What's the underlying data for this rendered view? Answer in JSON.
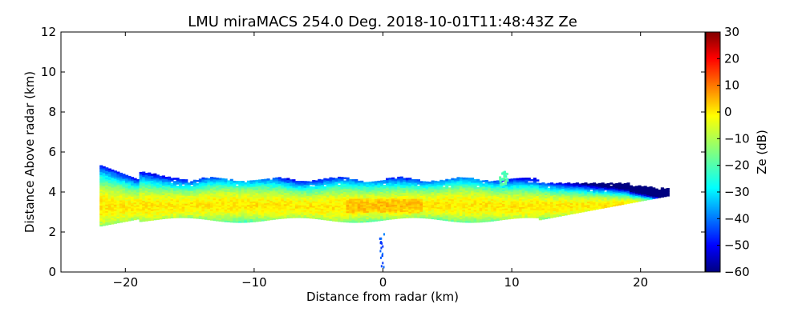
{
  "chart_data": {
    "type": "heatmap",
    "title": "LMU miraMACS 254.0 Deg. 2018-10-01T11:48:43Z  Ze",
    "xlabel": "Distance from radar (km)",
    "ylabel": "Distance Above radar  (km)",
    "xlim": [
      -25,
      25
    ],
    "ylim": [
      0,
      12
    ],
    "x_ticks": [
      -20,
      -10,
      0,
      10,
      20
    ],
    "x_tick_labels": [
      "−20",
      "−10",
      "0",
      "10",
      "20"
    ],
    "y_ticks": [
      0,
      2,
      4,
      6,
      8,
      10,
      12
    ],
    "y_tick_labels": [
      "0",
      "2",
      "4",
      "6",
      "8",
      "10",
      "12"
    ],
    "grid": false,
    "colorbar": {
      "label": "Ze (dB)",
      "range": [
        -60,
        30
      ],
      "ticks": [
        30,
        20,
        10,
        0,
        -10,
        -20,
        -30,
        -40,
        -50,
        -60
      ],
      "tick_labels": [
        "30",
        "20",
        "10",
        "0",
        "−10",
        "−20",
        "−30",
        "−40",
        "−50",
        "−60"
      ],
      "colormap": "jet"
    },
    "cloud_layer": {
      "x_range_km": [
        -22,
        22
      ],
      "core_height_km": 3.3,
      "base_height_km": 2.6,
      "top_height_km": 4.6,
      "core_ze_db": -2,
      "edge_ze_db": -28
    }
  }
}
